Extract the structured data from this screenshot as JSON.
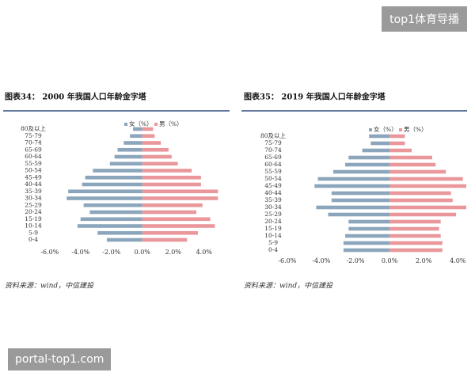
{
  "watermarks": {
    "top": "top1体育导播",
    "bottom": "portal-top1.com"
  },
  "chart_data": [
    {
      "type": "bar",
      "title": "图表34： 2000 年我国人口年龄金字塔",
      "source": "资料来源：wind，中信建投",
      "categories": [
        "80及以上",
        "75-79",
        "70-74",
        "65-69",
        "60-64",
        "55-59",
        "50-54",
        "45-49",
        "40-44",
        "35-39",
        "30-34",
        "25-29",
        "20-24",
        "15-19",
        "10-14",
        "5-9",
        "0-4"
      ],
      "series": [
        {
          "name": "女（%）",
          "color": "#8ba6bc",
          "values": [
            -0.6,
            -0.8,
            -1.2,
            -1.6,
            -1.8,
            -2.1,
            -3.2,
            -3.7,
            -3.9,
            -4.8,
            -4.9,
            -3.8,
            -3.4,
            -4.0,
            -4.2,
            -2.9,
            -2.3
          ]
        },
        {
          "name": "男（%）",
          "color": "#e9979b",
          "values": [
            0.7,
            0.8,
            1.2,
            1.7,
            1.9,
            2.3,
            3.2,
            3.8,
            3.8,
            4.9,
            4.9,
            3.9,
            3.5,
            4.4,
            4.7,
            3.6,
            2.9
          ]
        }
      ],
      "xlim": [
        -6.5,
        5.5
      ],
      "xticks": [
        {
          "value": -6,
          "label": "-6.0%"
        },
        {
          "value": -4,
          "label": "-4.0%"
        },
        {
          "value": -2,
          "label": "-2.0%"
        },
        {
          "value": 0,
          "label": "0.0%"
        },
        {
          "value": 2,
          "label": "2.0%"
        },
        {
          "value": 4,
          "label": "4.0%"
        }
      ]
    },
    {
      "type": "bar",
      "title": "图表35： 2019 年我国人口年龄金字塔",
      "source": "资料来源：wind，中信建投",
      "categories": [
        "80及以上",
        "75-79",
        "70-74",
        "65-69",
        "60-64",
        "55-59",
        "50-54",
        "45-49",
        "40-44",
        "35-39",
        "30-34",
        "25-29",
        "20-24",
        "15-19",
        "10-14",
        "5-9",
        "0-4"
      ],
      "series": [
        {
          "name": "女（%）",
          "color": "#8ba6bc",
          "values": [
            -1.2,
            -1.1,
            -1.6,
            -2.4,
            -2.6,
            -3.3,
            -4.2,
            -4.4,
            -3.4,
            -3.4,
            -4.3,
            -3.6,
            -2.4,
            -2.4,
            -2.6,
            -2.7,
            -2.7
          ]
        },
        {
          "name": "男（%）",
          "color": "#e9979b",
          "values": [
            0.9,
            0.9,
            1.3,
            2.5,
            2.7,
            3.3,
            4.3,
            4.5,
            3.6,
            3.7,
            4.5,
            3.9,
            3.0,
            2.9,
            3.0,
            3.1,
            3.1
          ]
        }
      ],
      "xlim": [
        -6.5,
        4.5
      ],
      "xticks": [
        {
          "value": -6,
          "label": "-6.0%"
        },
        {
          "value": -4,
          "label": "-4.0%"
        },
        {
          "value": -2,
          "label": "-2.0%"
        },
        {
          "value": 0,
          "label": "0.0%"
        },
        {
          "value": 2,
          "label": "2.0%"
        },
        {
          "value": 4,
          "label": "4.0%"
        }
      ]
    }
  ]
}
